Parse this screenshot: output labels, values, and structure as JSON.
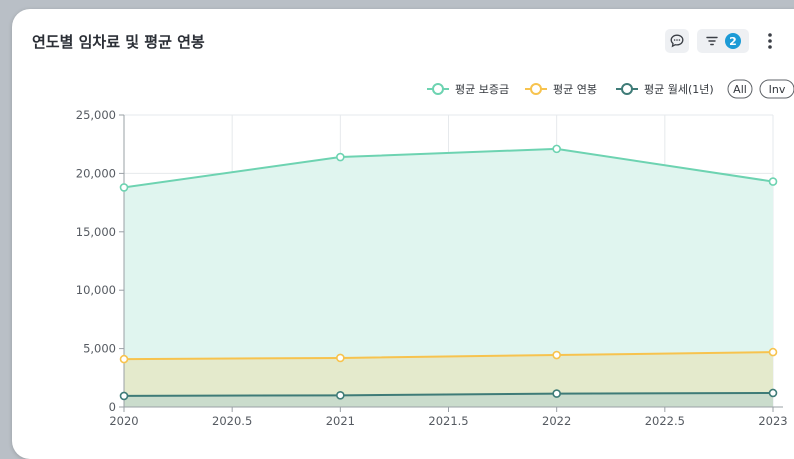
{
  "widget": {
    "title": "연도별 임차료 및 평균 연봉",
    "filter_count": "2",
    "icons": {
      "comment": "comment-icon",
      "filter": "filter-icon",
      "more": "more-vertical-icon"
    }
  },
  "chart_data": {
    "type": "area",
    "x": [
      2020,
      2021,
      2022,
      2023
    ],
    "xlim": [
      2020,
      2023
    ],
    "x_ticks": [
      2020,
      2020.5,
      2021,
      2021.5,
      2022,
      2022.5,
      2023
    ],
    "x_tick_labels": [
      "2020",
      "2020.5",
      "2021",
      "2021.5",
      "2022",
      "2022.5",
      "2023"
    ],
    "ylim": [
      0,
      25000
    ],
    "y_ticks": [
      0,
      5000,
      10000,
      15000,
      20000,
      25000
    ],
    "y_tick_labels": [
      "0",
      "5,000",
      "10,000",
      "15,000",
      "20,000",
      "25,000"
    ],
    "grid": true,
    "legend_position": "top-right",
    "series": [
      {
        "name": "평균 보증금",
        "values": [
          18800,
          21400,
          22100,
          19300
        ],
        "color": "#6dd3b1",
        "fill": "#e0f5ef"
      },
      {
        "name": "평균 연봉",
        "values": [
          4100,
          4200,
          4450,
          4700
        ],
        "color": "#f7c34e",
        "fill": "#e4eacc"
      },
      {
        "name": "평균 월세(1년)",
        "values": [
          950,
          1000,
          1150,
          1200
        ],
        "color": "#3e7b77",
        "fill": "#cadccc"
      }
    ],
    "range_buttons": [
      "All",
      "Inv"
    ]
  }
}
